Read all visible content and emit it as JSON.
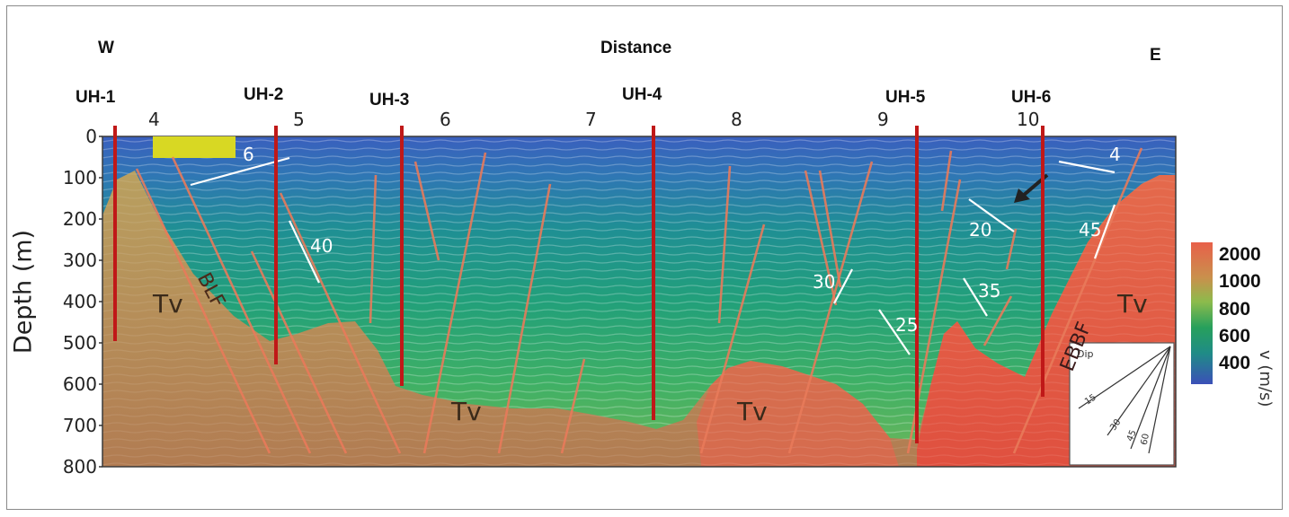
{
  "figure": {
    "direction_west": "W",
    "direction_east": "E",
    "x_axis_title": "Distance",
    "y_axis_title": "Depth (m)",
    "x_ticks": [
      "4",
      "5",
      "6",
      "7",
      "8",
      "9",
      "10"
    ],
    "y_ticks": [
      "0",
      "100",
      "200",
      "300",
      "400",
      "500",
      "600",
      "700",
      "800"
    ]
  },
  "wells": [
    {
      "label": "UH-1"
    },
    {
      "label": "UH-2"
    },
    {
      "label": "UH-3"
    },
    {
      "label": "UH-4"
    },
    {
      "label": "UH-5"
    },
    {
      "label": "UH-6"
    }
  ],
  "units": {
    "basement_label": "Tv"
  },
  "faults": {
    "west": "BLF",
    "east": "EBBF"
  },
  "dip_annotations": [
    "6",
    "40",
    "30",
    "25",
    "20",
    "35",
    "45",
    "4"
  ],
  "colorbar": {
    "title": "v (m/s)",
    "ticks": [
      "2000",
      "1000",
      "800",
      "600",
      "400"
    ],
    "colors": [
      "#e8604a",
      "#d8824a",
      "#9cb84a",
      "#29a05a",
      "#1f8f7a",
      "#2a6fb0",
      "#3a54b8"
    ]
  },
  "dip_legend": {
    "title": "Dip",
    "values": [
      "15",
      "30",
      "45",
      "60"
    ]
  },
  "colors": {
    "water": "#2f5fb6",
    "sediment": "#22a070",
    "basement": "#c09a64",
    "basement_red": "#e06050",
    "well_line": "#c01818",
    "fault_line": "#e87a5a",
    "highlight_box": "#d8d823"
  }
}
